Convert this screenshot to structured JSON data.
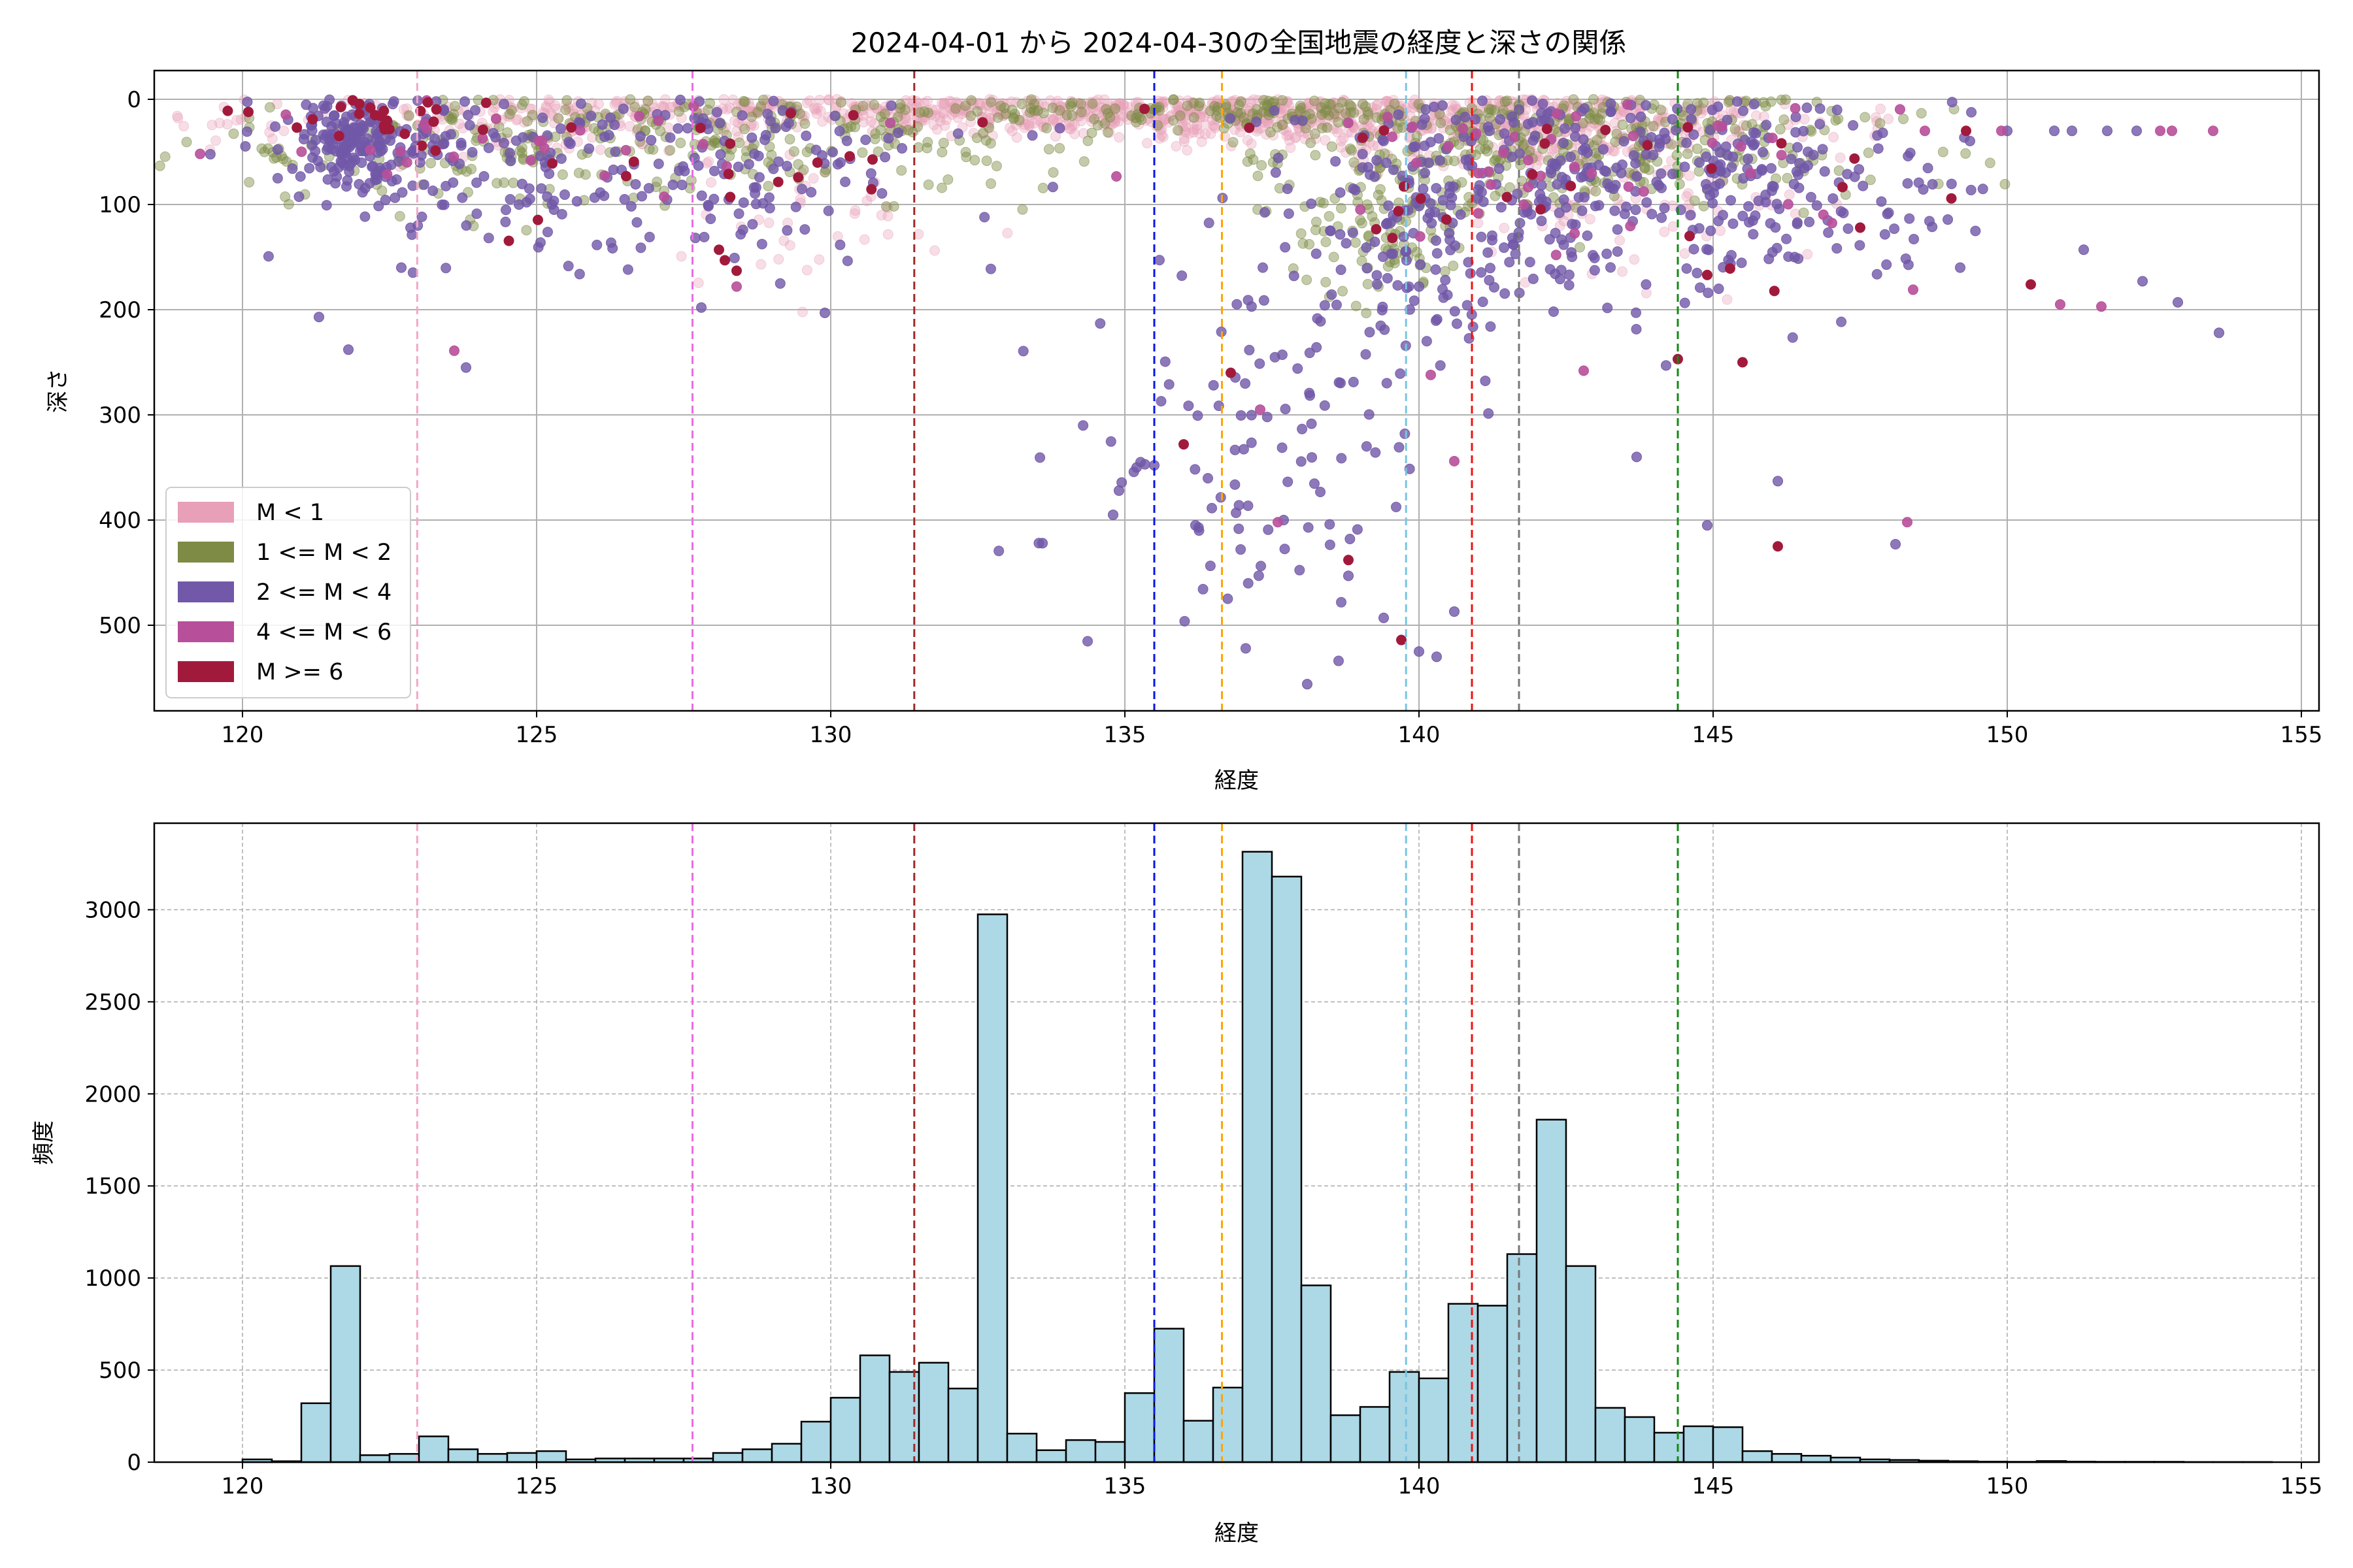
{
  "figure_title": "2024-04-01 から 2024-04-30の全国地震の経度と深さの関係",
  "chart_data": [
    {
      "type": "scatter",
      "title": "2024-04-01 から 2024-04-30の全国地震の経度と深さの関係",
      "xlabel": "経度",
      "ylabel": "深さ",
      "xlim": [
        118.5,
        155.3
      ],
      "ylim": [
        0,
        585
      ],
      "y_inverted": true,
      "x_ticks": [
        120,
        125,
        130,
        135,
        140,
        145,
        150,
        155
      ],
      "y_ticks": [
        0,
        100,
        200,
        300,
        400,
        500
      ],
      "grid": true,
      "legend_position": "lower-left",
      "series": [
        {
          "name": "M < 1",
          "color": "#e8a0b8",
          "alpha": 0.35
        },
        {
          "name": "1 <= M < 2",
          "color": "#7d8b44",
          "alpha": 0.45
        },
        {
          "name": "2 <= M < 4",
          "color": "#7158a8",
          "alpha": 0.8
        },
        {
          "name": "4 <= M < 6",
          "color": "#b84f9a",
          "alpha": 0.9
        },
        {
          "name": "M >= 6",
          "color": "#a11a3c",
          "alpha": 1.0
        }
      ],
      "clusters": [
        {
          "series": 0,
          "cx": 131.5,
          "cy": 12,
          "sx": 3.8,
          "sy": 10,
          "n": 420
        },
        {
          "series": 0,
          "cx": 137.3,
          "cy": 15,
          "sx": 2.5,
          "sy": 12,
          "n": 340
        },
        {
          "series": 0,
          "cx": 142.0,
          "cy": 22,
          "sx": 2.6,
          "sy": 20,
          "n": 360
        },
        {
          "series": 0,
          "cx": 124.2,
          "cy": 25,
          "sx": 2.6,
          "sy": 18,
          "n": 120
        },
        {
          "series": 0,
          "cx": 129.8,
          "cy": 110,
          "sx": 1.0,
          "sy": 40,
          "n": 40
        },
        {
          "series": 0,
          "cx": 143.5,
          "cy": 100,
          "sx": 1.6,
          "sy": 35,
          "n": 80
        },
        {
          "series": 1,
          "cx": 123.5,
          "cy": 45,
          "sx": 2.2,
          "sy": 30,
          "n": 150
        },
        {
          "series": 1,
          "cx": 129.5,
          "cy": 30,
          "sx": 2.5,
          "sy": 30,
          "n": 200
        },
        {
          "series": 1,
          "cx": 142.5,
          "cy": 40,
          "sx": 2.6,
          "sy": 35,
          "n": 380
        },
        {
          "series": 1,
          "cx": 139.5,
          "cy": 120,
          "sx": 0.9,
          "sy": 35,
          "n": 110
        },
        {
          "series": 1,
          "cx": 136.5,
          "cy": 12,
          "sx": 2.0,
          "sy": 8,
          "n": 120
        },
        {
          "series": 2,
          "cx": 121.9,
          "cy": 40,
          "sx": 0.6,
          "sy": 22,
          "n": 180
        },
        {
          "series": 2,
          "cx": 124.5,
          "cy": 70,
          "sx": 2.0,
          "sy": 45,
          "n": 120
        },
        {
          "series": 2,
          "cx": 128.5,
          "cy": 60,
          "sx": 2.2,
          "sy": 45,
          "n": 120
        },
        {
          "series": 2,
          "cx": 142.8,
          "cy": 70,
          "sx": 2.4,
          "sy": 50,
          "n": 320
        },
        {
          "series": 2,
          "cx": 137.3,
          "cy": 330,
          "sx": 1.5,
          "sy": 80,
          "n": 95
        },
        {
          "series": 2,
          "cx": 140.0,
          "cy": 150,
          "sx": 1.0,
          "sy": 60,
          "n": 110
        },
        {
          "series": 2,
          "cx": 146.8,
          "cy": 80,
          "sx": 1.5,
          "sy": 55,
          "n": 90
        },
        {
          "series": 3,
          "cx": 124.5,
          "cy": 40,
          "sx": 2.5,
          "sy": 30,
          "n": 30
        },
        {
          "series": 3,
          "cx": 142.0,
          "cy": 50,
          "sx": 3.0,
          "sy": 50,
          "n": 45
        },
        {
          "series": 4,
          "cx": 122.0,
          "cy": 20,
          "sx": 1.2,
          "sy": 15,
          "n": 25
        },
        {
          "series": 4,
          "cx": 129.0,
          "cy": 60,
          "sx": 2.5,
          "sy": 45,
          "n": 20
        },
        {
          "series": 4,
          "cx": 142.5,
          "cy": 80,
          "sx": 2.5,
          "sy": 60,
          "n": 25
        }
      ],
      "points": [
        {
          "series": 2,
          "x": 150.0,
          "y": 30
        },
        {
          "series": 2,
          "x": 150.8,
          "y": 30
        },
        {
          "series": 2,
          "x": 151.1,
          "y": 30
        },
        {
          "series": 2,
          "x": 151.7,
          "y": 30
        },
        {
          "series": 2,
          "x": 152.2,
          "y": 30
        },
        {
          "series": 2,
          "x": 151.3,
          "y": 143
        },
        {
          "series": 2,
          "x": 152.3,
          "y": 173
        },
        {
          "series": 2,
          "x": 152.9,
          "y": 193
        },
        {
          "series": 2,
          "x": 153.6,
          "y": 222
        },
        {
          "series": 2,
          "x": 149.2,
          "y": 160
        },
        {
          "series": 2,
          "x": 148.1,
          "y": 423
        },
        {
          "series": 2,
          "x": 146.1,
          "y": 363
        },
        {
          "series": 2,
          "x": 144.9,
          "y": 405
        },
        {
          "series": 2,
          "x": 138.1,
          "y": 556
        },
        {
          "series": 2,
          "x": 140.3,
          "y": 530
        },
        {
          "series": 2,
          "x": 140.6,
          "y": 487
        },
        {
          "series": 2,
          "x": 139.4,
          "y": 493
        },
        {
          "series": 2,
          "x": 140.0,
          "y": 525
        },
        {
          "series": 2,
          "x": 133.6,
          "y": 422
        },
        {
          "series": 2,
          "x": 134.8,
          "y": 395
        },
        {
          "series": 2,
          "x": 134.9,
          "y": 372
        },
        {
          "series": 2,
          "x": 135.5,
          "y": 348
        },
        {
          "series": 2,
          "x": 135.2,
          "y": 350
        },
        {
          "series": 2,
          "x": 136.2,
          "y": 405
        },
        {
          "series": 2,
          "x": 123.8,
          "y": 255
        },
        {
          "series": 2,
          "x": 121.8,
          "y": 238
        },
        {
          "series": 2,
          "x": 121.3,
          "y": 207
        },
        {
          "series": 2,
          "x": 122.7,
          "y": 160
        },
        {
          "series": 2,
          "x": 129.9,
          "y": 203
        },
        {
          "series": 2,
          "x": 127.8,
          "y": 198
        },
        {
          "series": 2,
          "x": 143.7,
          "y": 340
        },
        {
          "series": 2,
          "x": 144.2,
          "y": 253
        },
        {
          "series": 2,
          "x": 138.8,
          "y": 453
        },
        {
          "series": 2,
          "x": 137.7,
          "y": 400
        },
        {
          "series": 3,
          "x": 153.5,
          "y": 30
        },
        {
          "series": 3,
          "x": 152.6,
          "y": 30
        },
        {
          "series": 3,
          "x": 152.8,
          "y": 30
        },
        {
          "series": 3,
          "x": 149.9,
          "y": 30
        },
        {
          "series": 3,
          "x": 148.6,
          "y": 30
        },
        {
          "series": 3,
          "x": 150.9,
          "y": 195
        },
        {
          "series": 3,
          "x": 151.6,
          "y": 197
        },
        {
          "series": 3,
          "x": 148.4,
          "y": 181
        },
        {
          "series": 3,
          "x": 148.3,
          "y": 402
        },
        {
          "series": 3,
          "x": 140.6,
          "y": 344
        },
        {
          "series": 3,
          "x": 140.2,
          "y": 262
        },
        {
          "series": 3,
          "x": 137.3,
          "y": 295
        },
        {
          "series": 3,
          "x": 137.6,
          "y": 402
        },
        {
          "series": 3,
          "x": 123.6,
          "y": 239
        },
        {
          "series": 3,
          "x": 128.4,
          "y": 178
        },
        {
          "series": 3,
          "x": 142.8,
          "y": 258
        },
        {
          "series": 4,
          "x": 150.4,
          "y": 176
        },
        {
          "series": 4,
          "x": 146.1,
          "y": 425
        },
        {
          "series": 4,
          "x": 145.5,
          "y": 250
        },
        {
          "series": 4,
          "x": 144.4,
          "y": 247
        },
        {
          "series": 4,
          "x": 136.0,
          "y": 328
        },
        {
          "series": 4,
          "x": 136.8,
          "y": 260
        },
        {
          "series": 4,
          "x": 139.7,
          "y": 514
        },
        {
          "series": 4,
          "x": 138.8,
          "y": 438
        },
        {
          "series": 4,
          "x": 128.1,
          "y": 143
        },
        {
          "series": 4,
          "x": 128.2,
          "y": 153
        },
        {
          "series": 4,
          "x": 128.4,
          "y": 163
        },
        {
          "series": 4,
          "x": 149.3,
          "y": 30
        },
        {
          "series": 4,
          "x": 120.1,
          "y": 12
        },
        {
          "series": 4,
          "x": 144.6,
          "y": 130
        },
        {
          "series": 4,
          "x": 144.9,
          "y": 167
        },
        {
          "series": 4,
          "x": 147.5,
          "y": 122
        }
      ],
      "vlines": [
        {
          "x": 122.97,
          "color": "#f4a6c8"
        },
        {
          "x": 127.65,
          "color": "#e86ee0"
        },
        {
          "x": 131.42,
          "color": "#a12a2a"
        },
        {
          "x": 135.5,
          "color": "#0a16e6"
        },
        {
          "x": 136.65,
          "color": "#ffa500"
        },
        {
          "x": 139.78,
          "color": "#7ac4e0"
        },
        {
          "x": 140.9,
          "color": "#f01010"
        },
        {
          "x": 141.7,
          "color": "#777777"
        },
        {
          "x": 144.4,
          "color": "#138a13"
        }
      ]
    },
    {
      "type": "bar",
      "title": "",
      "xlabel": "経度",
      "ylabel": "頻度",
      "xlim": [
        118.5,
        155.3
      ],
      "ylim": [
        0,
        3470
      ],
      "x_ticks": [
        120,
        125,
        130,
        135,
        140,
        145,
        150,
        155
      ],
      "y_ticks": [
        0,
        500,
        1000,
        1500,
        2000,
        2500,
        3000
      ],
      "grid": true,
      "bar_color": "#add8e6",
      "bar_edge_color": "#000000",
      "bin_start": 120.0,
      "bin_width": 0.5,
      "values": [
        15,
        5,
        320,
        1065,
        38,
        45,
        140,
        70,
        45,
        50,
        60,
        15,
        20,
        20,
        20,
        20,
        50,
        70,
        100,
        220,
        350,
        580,
        490,
        540,
        400,
        2975,
        155,
        65,
        120,
        110,
        375,
        725,
        225,
        405,
        3315,
        3180,
        960,
        255,
        300,
        490,
        455,
        860,
        850,
        1130,
        1860,
        1065,
        295,
        245,
        160,
        195,
        190,
        60,
        45,
        35,
        25,
        15,
        12,
        8,
        5,
        3,
        2,
        6,
        3,
        2,
        2,
        2,
        1,
        1,
        1
      ],
      "vlines": [
        {
          "x": 122.97,
          "color": "#f4a6c8"
        },
        {
          "x": 127.65,
          "color": "#e86ee0"
        },
        {
          "x": 131.42,
          "color": "#a12a2a"
        },
        {
          "x": 135.5,
          "color": "#0a16e6"
        },
        {
          "x": 136.65,
          "color": "#ffa500"
        },
        {
          "x": 139.78,
          "color": "#7ac4e0"
        },
        {
          "x": 140.9,
          "color": "#f01010"
        },
        {
          "x": 141.7,
          "color": "#777777"
        },
        {
          "x": 144.4,
          "color": "#138a13"
        }
      ]
    }
  ]
}
